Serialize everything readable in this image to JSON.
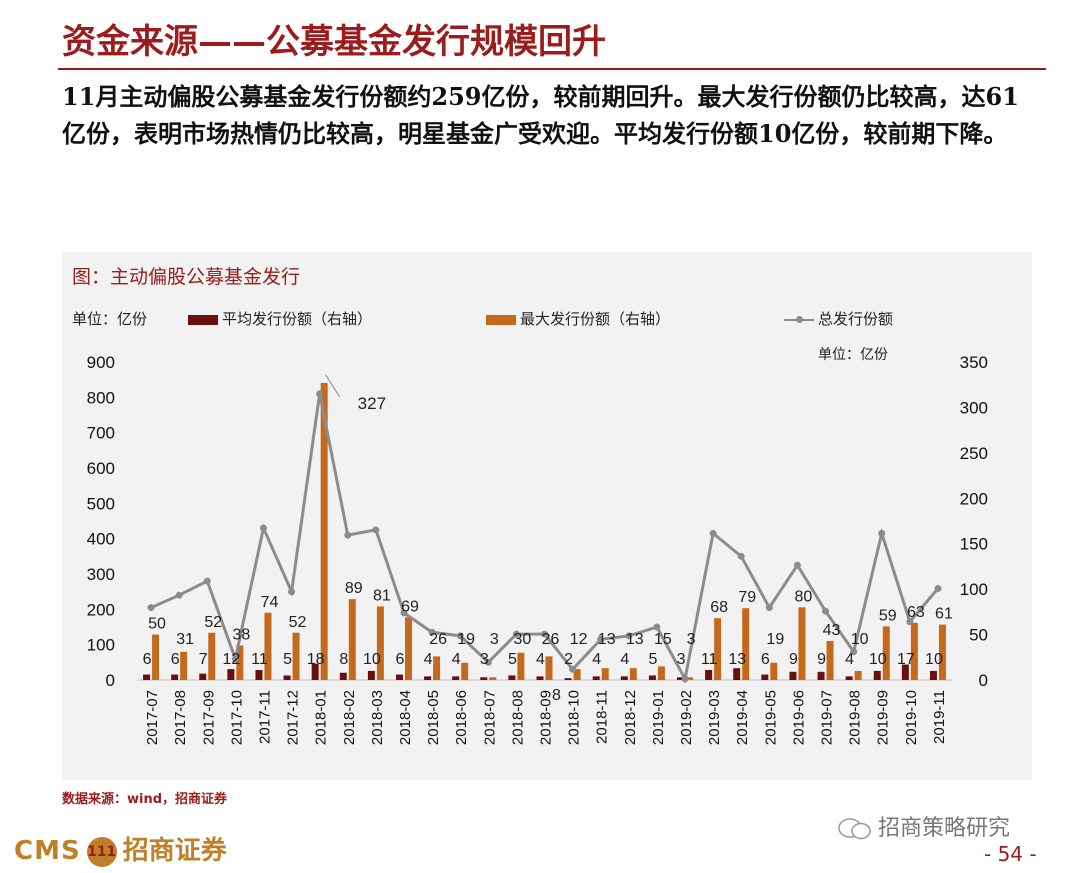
{
  "header": {
    "title": "资金来源——公募基金发行规模回升",
    "description": "11月主动偏股公募基金发行份额约259亿份，较前期回升。最大发行份额仍比较高，达61亿份，表明市场热情仍比较高，明星基金广受欢迎。平均发行份额10亿份，较前期下降。"
  },
  "figure": {
    "title": "图：主动偏股公募基金发行",
    "unit_left": "单位：亿份",
    "unit_right": "单位：亿份",
    "source": "数据来源：wind，招商证券"
  },
  "colors": {
    "avg": "#6b0e0e",
    "max": "#c46a1c",
    "total": "#8c8c8c",
    "accent": "#9b1c1c"
  },
  "chart_data": {
    "type": "bar",
    "categories": [
      "2017-07",
      "2017-08",
      "2017-09",
      "2017-10",
      "2017-11",
      "2017-12",
      "2018-01",
      "2018-02",
      "2018-03",
      "2018-04",
      "2018-05",
      "2018-06",
      "2018-07",
      "2018-08",
      "2018-09",
      "2018-10",
      "2018-11",
      "2018-12",
      "2019-01",
      "2019-02",
      "2019-03",
      "2019-04",
      "2019-05",
      "2019-06",
      "2019-07",
      "2019-08",
      "2019-09",
      "2019-10",
      "2019-11"
    ],
    "series": [
      {
        "name": "平均发行份额（右轴）",
        "type": "bar",
        "axis": "right",
        "values": [
          6,
          6,
          7,
          12,
          11,
          5,
          18,
          8,
          10,
          6,
          4,
          4,
          3,
          5,
          4,
          2,
          4,
          4,
          5,
          3,
          11,
          13,
          6,
          9,
          9,
          4,
          10,
          17,
          10
        ]
      },
      {
        "name": "最大发行份额（右轴）",
        "type": "bar",
        "axis": "right",
        "values": [
          50,
          31,
          52,
          38,
          74,
          52,
          327,
          89,
          81,
          69,
          26,
          19,
          3,
          30,
          26,
          12,
          13,
          13,
          15,
          3,
          68,
          79,
          19,
          80,
          43,
          10,
          59,
          63,
          61
        ]
      },
      {
        "name": "总发行份额",
        "type": "line",
        "axis": "left",
        "values": [
          205,
          240,
          280,
          60,
          430,
          250,
          810,
          410,
          425,
          190,
          135,
          125,
          50,
          130,
          130,
          30,
          115,
          125,
          150,
          3,
          415,
          350,
          205,
          325,
          195,
          80,
          415,
          165,
          259
        ]
      }
    ],
    "labels": {
      "avg": [
        "6",
        "6",
        "7",
        "12",
        "11",
        "5",
        "18",
        "8",
        "10",
        "6",
        "4",
        "4",
        "3",
        "5",
        "4",
        "2",
        "4",
        "4",
        "5",
        "3",
        "11",
        "13",
        "6",
        "9",
        "9",
        "4",
        "10",
        "17",
        "10"
      ],
      "max": [
        "50",
        "31",
        "52",
        "38",
        "74",
        "52",
        "327",
        "89",
        "81",
        "69",
        "26",
        "19",
        "3",
        "30",
        "26",
        "12",
        "13",
        "13",
        "15",
        "3",
        "68",
        "79",
        "19",
        "80",
        "43",
        "10",
        "59",
        "63",
        "61"
      ],
      "total_callout": "8"
    },
    "yleft": {
      "lim": [
        0,
        900
      ],
      "ticks": [
        "0",
        "100",
        "200",
        "300",
        "400",
        "500",
        "600",
        "700",
        "800",
        "900"
      ]
    },
    "yright": {
      "lim": [
        0,
        350
      ],
      "ticks": [
        "0",
        "50",
        "100",
        "150",
        "200",
        "250",
        "300",
        "350"
      ]
    },
    "grid": false,
    "legend_position": "top"
  },
  "brand": {
    "cms": "CMS",
    "logo_mark": "111",
    "name": "招商证券",
    "wechat": "招商策略研究",
    "page": "- 54 -"
  }
}
